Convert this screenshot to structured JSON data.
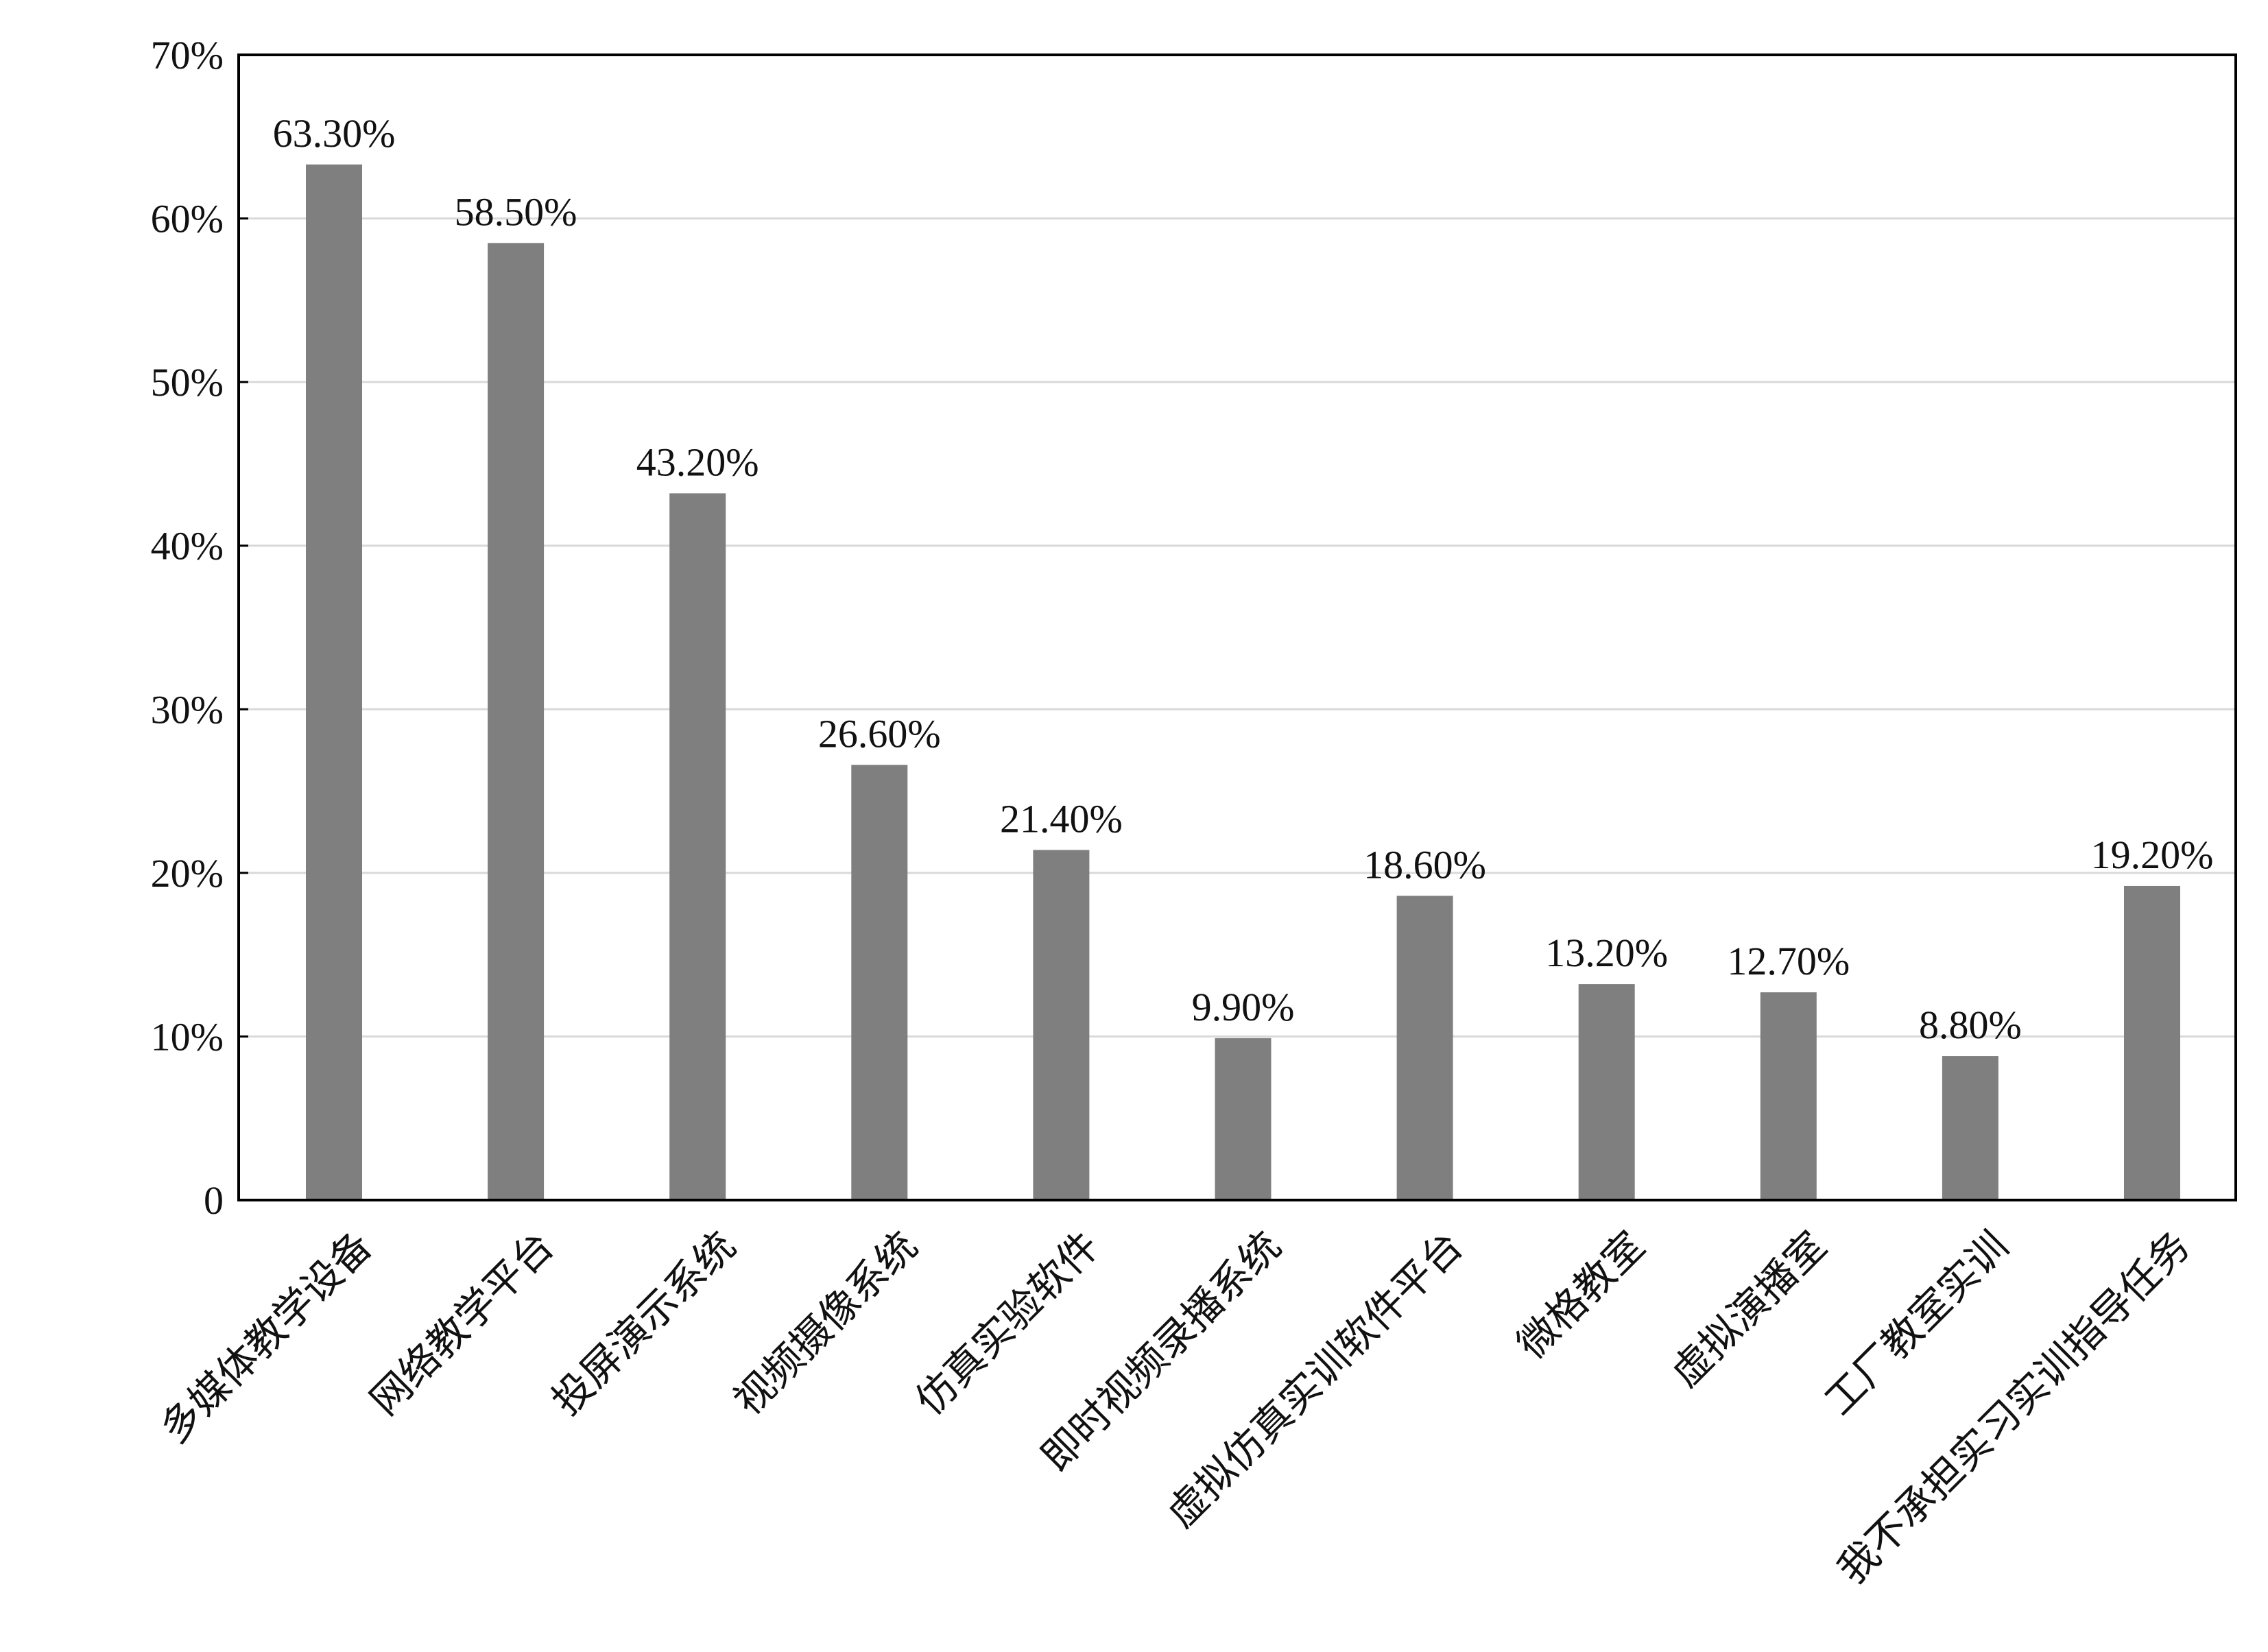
{
  "chart_data": {
    "type": "bar",
    "title": "",
    "xlabel": "",
    "ylabel": "",
    "ylim": [
      0,
      70
    ],
    "y_tick_values": [
      0,
      10,
      20,
      30,
      40,
      50,
      60,
      70
    ],
    "y_tick_labels": [
      "0",
      "10%",
      "20%",
      "30%",
      "40%",
      "50%",
      "60%",
      "70%"
    ],
    "grid": "horizontal",
    "categories": [
      "多媒体教学设备",
      "网络教学平台",
      "投屏演示系统",
      "视频摄像系统",
      "仿真实验软件",
      "即时视频录播系统",
      "虚拟仿真实训软件平台",
      "微格教室",
      "虚拟演播室",
      "工厂教室实训",
      "我不承担实习实训指导任务"
    ],
    "values": [
      63.3,
      58.5,
      43.2,
      26.6,
      21.4,
      9.9,
      18.6,
      13.2,
      12.7,
      8.8,
      19.2
    ],
    "data_labels": [
      "63.30%",
      "58.50%",
      "43.20%",
      "26.60%",
      "21.40%",
      "9.90%",
      "18.60%",
      "13.20%",
      "12.70%",
      "8.80%",
      "19.20%"
    ],
    "colors": {
      "bar": "#7f7f7f",
      "grid": "#d9d9d9",
      "axis": "#000000",
      "text": "#111111"
    }
  }
}
